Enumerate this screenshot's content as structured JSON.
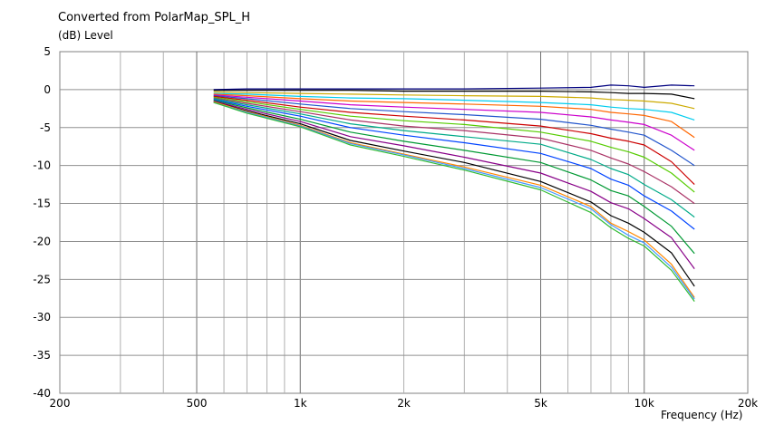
{
  "chart_data": {
    "type": "line",
    "title": "Converted from PolarMap_SPL_H",
    "ylabel": "(dB)  Level",
    "xlabel": "Frequency  (Hz)",
    "x_scale": "log",
    "xlim": [
      200,
      20000
    ],
    "ylim": [
      -40,
      5
    ],
    "grid": true,
    "x_tick_labels": [
      "200",
      "500",
      "1k",
      "2k",
      "5k",
      "10k",
      "20k"
    ],
    "x_tick_values": [
      200,
      500,
      1000,
      2000,
      5000,
      10000,
      20000
    ],
    "y_ticks": [
      5,
      0,
      -5,
      -10,
      -15,
      -20,
      -25,
      -30,
      -35,
      -40
    ],
    "x": [
      560,
      700,
      1000,
      1400,
      2000,
      3000,
      5000,
      7000,
      8000,
      9000,
      10000,
      12000,
      14000
    ],
    "series": [
      {
        "color": "#000080",
        "values": [
          0.0,
          0.1,
          0.1,
          0.1,
          0.1,
          0.1,
          0.2,
          0.3,
          0.6,
          0.5,
          0.3,
          0.6,
          0.5
        ]
      },
      {
        "color": "#000000",
        "values": [
          -0.1,
          -0.1,
          -0.1,
          -0.1,
          -0.2,
          -0.2,
          -0.2,
          -0.3,
          -0.4,
          -0.5,
          -0.5,
          -0.6,
          -1.2
        ]
      },
      {
        "color": "#ccaa00",
        "values": [
          -0.3,
          -0.4,
          -0.5,
          -0.6,
          -0.7,
          -0.8,
          -0.9,
          -1.1,
          -1.3,
          -1.4,
          -1.5,
          -1.8,
          -2.5
        ]
      },
      {
        "color": "#00ccee",
        "values": [
          -0.5,
          -0.6,
          -0.9,
          -1.1,
          -1.2,
          -1.4,
          -1.7,
          -2.0,
          -2.3,
          -2.5,
          -2.6,
          -3.0,
          -4.0
        ]
      },
      {
        "color": "#ff6600",
        "values": [
          -0.6,
          -0.8,
          -1.2,
          -1.5,
          -1.7,
          -1.9,
          -2.2,
          -2.6,
          -3.0,
          -3.2,
          -3.4,
          -4.2,
          -6.3
        ]
      },
      {
        "color": "#cc00cc",
        "values": [
          -0.7,
          -1.0,
          -1.5,
          -2.0,
          -2.3,
          -2.6,
          -3.0,
          -3.6,
          -4.0,
          -4.3,
          -4.6,
          -6.0,
          -8.0
        ]
      },
      {
        "color": "#2255cc",
        "values": [
          -0.8,
          -1.2,
          -1.9,
          -2.5,
          -2.9,
          -3.3,
          -3.9,
          -4.7,
          -5.2,
          -5.6,
          -6.0,
          -8.0,
          -10.0
        ]
      },
      {
        "color": "#cc0000",
        "values": [
          -0.9,
          -1.4,
          -2.3,
          -3.0,
          -3.5,
          -4.0,
          -4.8,
          -5.8,
          -6.4,
          -6.8,
          -7.3,
          -9.5,
          -12.5
        ]
      },
      {
        "color": "#55cc00",
        "values": [
          -1.0,
          -1.6,
          -2.6,
          -3.5,
          -4.1,
          -4.6,
          -5.6,
          -6.8,
          -7.6,
          -8.2,
          -8.9,
          -11.0,
          -13.5
        ]
      },
      {
        "color": "#aa3366",
        "values": [
          -1.1,
          -1.8,
          -2.9,
          -4.0,
          -4.8,
          -5.4,
          -6.4,
          -8.0,
          -9.0,
          -9.8,
          -10.8,
          -12.8,
          -15.0
        ]
      },
      {
        "color": "#00aa88",
        "values": [
          -1.2,
          -2.0,
          -3.2,
          -4.5,
          -5.4,
          -6.2,
          -7.2,
          -9.2,
          -10.4,
          -11.2,
          -12.5,
          -14.5,
          -16.8
        ]
      },
      {
        "color": "#0044ff",
        "values": [
          -1.3,
          -2.2,
          -3.5,
          -5.0,
          -6.0,
          -7.0,
          -8.4,
          -10.4,
          -11.8,
          -12.6,
          -14.0,
          -16.0,
          -18.4
        ]
      },
      {
        "color": "#009933",
        "values": [
          -1.4,
          -2.4,
          -3.9,
          -5.6,
          -6.8,
          -8.0,
          -9.6,
          -11.9,
          -13.3,
          -14.0,
          -15.4,
          -18.0,
          -21.6
        ]
      },
      {
        "color": "#880088",
        "values": [
          -1.5,
          -2.6,
          -4.2,
          -6.2,
          -7.4,
          -8.9,
          -11.0,
          -13.4,
          -14.9,
          -15.7,
          -17.0,
          -19.5,
          -23.6
        ]
      },
      {
        "color": "#000000",
        "values": [
          -1.6,
          -2.8,
          -4.5,
          -6.7,
          -8.1,
          -9.6,
          -12.1,
          -14.8,
          -16.6,
          -17.6,
          -18.8,
          -21.5,
          -25.9
        ]
      },
      {
        "color": "#ff8800",
        "values": [
          -1.6,
          -2.9,
          -4.7,
          -7.0,
          -8.5,
          -10.2,
          -12.6,
          -15.4,
          -17.6,
          -18.7,
          -19.8,
          -23.0,
          -27.4
        ]
      },
      {
        "color": "#4499ff",
        "values": [
          -1.7,
          -3.0,
          -4.8,
          -7.1,
          -8.6,
          -10.4,
          -12.9,
          -15.7,
          -17.8,
          -19.2,
          -20.2,
          -23.4,
          -27.6
        ]
      },
      {
        "color": "#33bb33",
        "values": [
          -1.7,
          -3.1,
          -4.9,
          -7.3,
          -8.8,
          -10.6,
          -13.2,
          -16.2,
          -18.2,
          -19.6,
          -20.6,
          -23.8,
          -27.9
        ]
      }
    ]
  }
}
